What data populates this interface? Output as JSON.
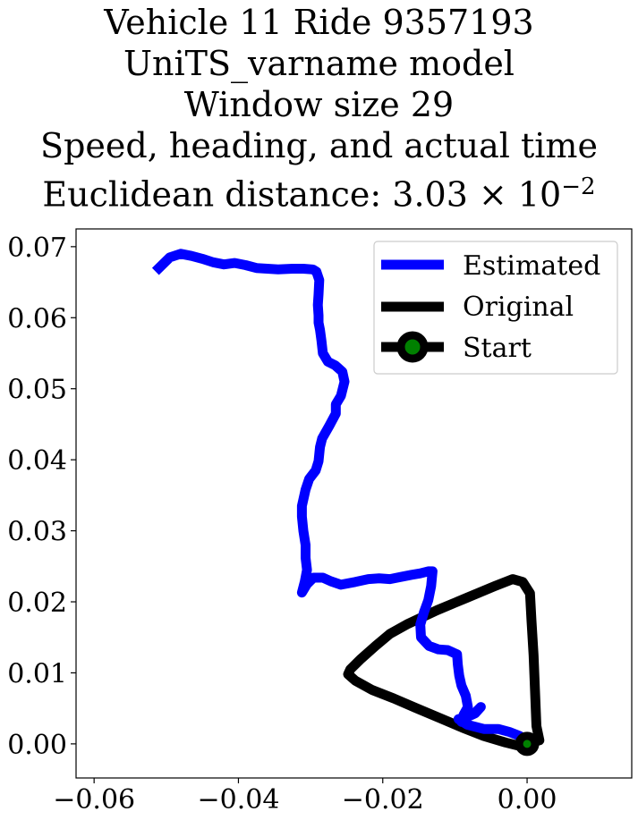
{
  "chart_data": {
    "type": "line",
    "title_lines": [
      "Vehicle 11 Ride 9357193",
      "UniTS_varname model",
      "Window size 29",
      "Speed, heading, and actual time",
      "Euclidean distance: 3.03 × 10",
      "−2"
    ],
    "xlim": [
      -0.0625,
      0.0145
    ],
    "ylim": [
      -0.0048,
      0.0725
    ],
    "xticks": [
      -0.06,
      -0.04,
      -0.02,
      0.0
    ],
    "xtick_labels": [
      "−0.06",
      "−0.04",
      "−0.02",
      "0.00"
    ],
    "yticks": [
      0.0,
      0.01,
      0.02,
      0.03,
      0.04,
      0.05,
      0.06,
      0.07
    ],
    "ytick_labels": [
      "0.00",
      "0.01",
      "0.02",
      "0.03",
      "0.04",
      "0.05",
      "0.06",
      "0.07"
    ],
    "grid": false,
    "legend_position": "top-right",
    "series": [
      {
        "name": "Estimated",
        "color": "#0000ff",
        "points": [
          [
            -0.051,
            0.067
          ],
          [
            -0.0495,
            0.0685
          ],
          [
            -0.048,
            0.069
          ],
          [
            -0.0465,
            0.0687
          ],
          [
            -0.045,
            0.0683
          ],
          [
            -0.0435,
            0.0678
          ],
          [
            -0.042,
            0.0675
          ],
          [
            -0.0405,
            0.0677
          ],
          [
            -0.039,
            0.0674
          ],
          [
            -0.0375,
            0.067
          ],
          [
            -0.036,
            0.0669
          ],
          [
            -0.0345,
            0.0668
          ],
          [
            -0.0325,
            0.0669
          ],
          [
            -0.031,
            0.0669
          ],
          [
            -0.0297,
            0.0668
          ],
          [
            -0.0292,
            0.0665
          ],
          [
            -0.0288,
            0.0653
          ],
          [
            -0.0289,
            0.0633
          ],
          [
            -0.029,
            0.0618
          ],
          [
            -0.0289,
            0.0603
          ],
          [
            -0.0289,
            0.0593
          ],
          [
            -0.0287,
            0.0583
          ],
          [
            -0.0285,
            0.0568
          ],
          [
            -0.0283,
            0.055
          ],
          [
            -0.0276,
            0.0538
          ],
          [
            -0.0266,
            0.0533
          ],
          [
            -0.0256,
            0.0524
          ],
          [
            -0.0253,
            0.051
          ],
          [
            -0.0258,
            0.049
          ],
          [
            -0.0265,
            0.0478
          ],
          [
            -0.0265,
            0.0465
          ],
          [
            -0.0274,
            0.0448
          ],
          [
            -0.0284,
            0.043
          ],
          [
            -0.0287,
            0.0418
          ],
          [
            -0.0289,
            0.0398
          ],
          [
            -0.0293,
            0.0385
          ],
          [
            -0.0302,
            0.0373
          ],
          [
            -0.0307,
            0.0358
          ],
          [
            -0.0312,
            0.0335
          ],
          [
            -0.0312,
            0.032
          ],
          [
            -0.031,
            0.03
          ],
          [
            -0.0307,
            0.028
          ],
          [
            -0.0307,
            0.0262
          ],
          [
            -0.0305,
            0.0245
          ],
          [
            -0.0308,
            0.0229
          ],
          [
            -0.0312,
            0.0213
          ],
          [
            -0.0305,
            0.0225
          ],
          [
            -0.0296,
            0.0234
          ],
          [
            -0.0283,
            0.0234
          ],
          [
            -0.0272,
            0.0229
          ],
          [
            -0.0258,
            0.0224
          ],
          [
            -0.0238,
            0.0228
          ],
          [
            -0.022,
            0.0232
          ],
          [
            -0.0205,
            0.0233
          ],
          [
            -0.019,
            0.0232
          ],
          [
            -0.0175,
            0.0235
          ],
          [
            -0.016,
            0.0238
          ],
          [
            -0.0148,
            0.024
          ],
          [
            -0.0137,
            0.0243
          ],
          [
            -0.0131,
            0.0243
          ],
          [
            -0.0133,
            0.0222
          ],
          [
            -0.0137,
            0.0202
          ],
          [
            -0.0143,
            0.0185
          ],
          [
            -0.0148,
            0.0168
          ],
          [
            -0.0147,
            0.015
          ],
          [
            -0.0136,
            0.0138
          ],
          [
            -0.0123,
            0.0133
          ],
          [
            -0.011,
            0.0132
          ],
          [
            -0.0097,
            0.0126
          ],
          [
            -0.0096,
            0.0112
          ],
          [
            -0.0094,
            0.0096
          ],
          [
            -0.0091,
            0.0082
          ],
          [
            -0.0085,
            0.0068
          ],
          [
            -0.0082,
            0.0052
          ],
          [
            -0.0088,
            0.0041
          ],
          [
            -0.0091,
            0.0031
          ],
          [
            -0.0083,
            0.0038
          ],
          [
            -0.0072,
            0.0043
          ],
          [
            -0.0064,
            0.0052
          ],
          [
            -0.0074,
            0.0042
          ],
          [
            -0.0085,
            0.0037
          ],
          [
            -0.0095,
            0.0035
          ],
          [
            -0.0083,
            0.0027
          ],
          [
            -0.006,
            0.0021
          ],
          [
            -0.004,
            0.0021
          ],
          [
            -0.0025,
            0.0017
          ],
          [
            -0.001,
            0.0011
          ],
          [
            0.0,
            0.0
          ]
        ]
      },
      {
        "name": "Original",
        "color": "#000000",
        "points": [
          [
            0.0,
            0.0
          ],
          [
            0.0017,
            0.0005
          ],
          [
            0.0013,
            0.0025
          ],
          [
            0.0011,
            0.0075
          ],
          [
            0.0009,
            0.0125
          ],
          [
            0.0006,
            0.0175
          ],
          [
            0.0004,
            0.0212
          ],
          [
            -0.0006,
            0.0228
          ],
          [
            -0.002,
            0.0232
          ],
          [
            -0.0045,
            0.0222
          ],
          [
            -0.0085,
            0.0205
          ],
          [
            -0.0125,
            0.0188
          ],
          [
            -0.0165,
            0.0169
          ],
          [
            -0.019,
            0.0155
          ],
          [
            -0.021,
            0.0138
          ],
          [
            -0.023,
            0.012
          ],
          [
            -0.0245,
            0.0105
          ],
          [
            -0.0248,
            0.0098
          ],
          [
            -0.0238,
            0.0089
          ],
          [
            -0.0215,
            0.0076
          ],
          [
            -0.0185,
            0.0064
          ],
          [
            -0.0155,
            0.0051
          ],
          [
            -0.012,
            0.0036
          ],
          [
            -0.009,
            0.0023
          ],
          [
            -0.006,
            0.0011
          ],
          [
            -0.003,
            0.0002
          ],
          [
            -0.001,
            -0.0003
          ],
          [
            0.0,
            0.0
          ]
        ]
      }
    ],
    "start_marker": {
      "name": "Start",
      "x": 0.0,
      "y": 0.0,
      "color": "#008000",
      "edge_color": "#000000"
    }
  }
}
